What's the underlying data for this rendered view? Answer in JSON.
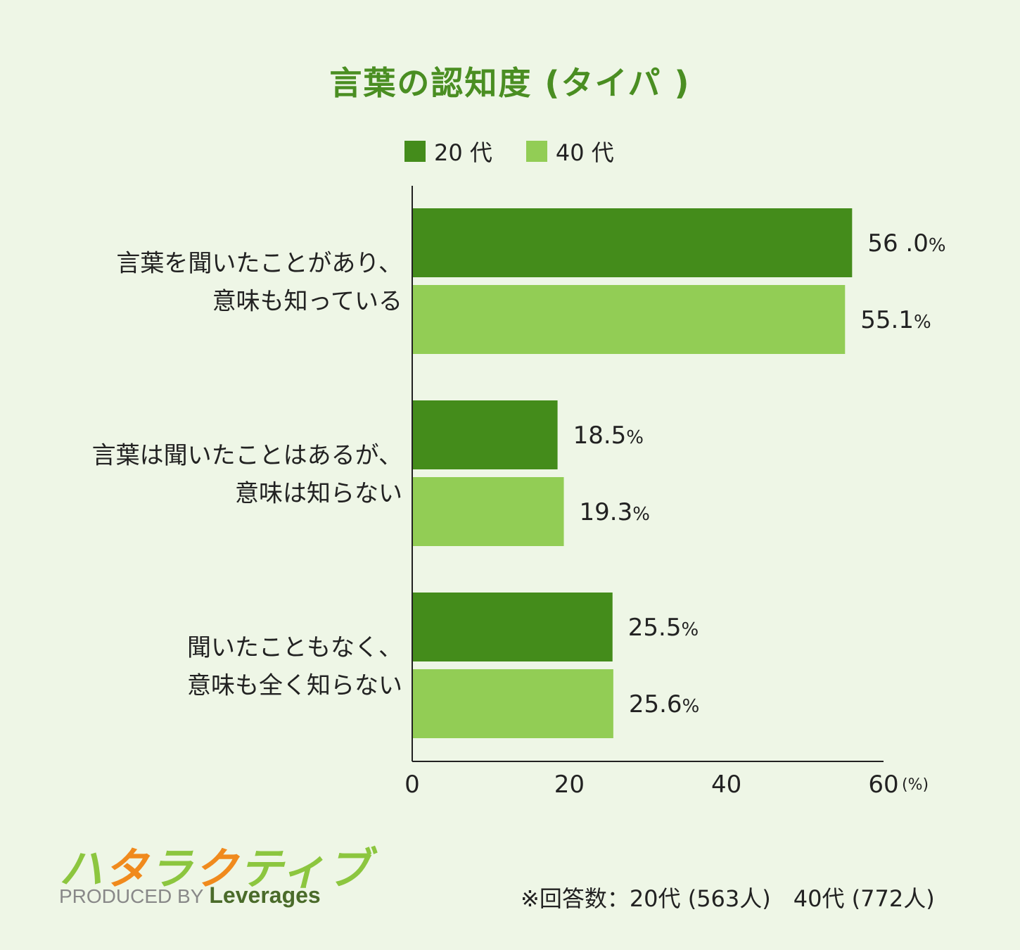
{
  "chart_data": {
    "type": "bar",
    "orientation": "horizontal",
    "title": "言葉の認知度 (タイパ )",
    "categories": [
      [
        "言葉を聞いたことがあり、",
        "意味も知っている"
      ],
      [
        "言葉は聞いたことはあるが、",
        "意味は知らない"
      ],
      [
        "聞いたこともなく、",
        "意味も全く知らない"
      ]
    ],
    "series": [
      {
        "name": "20 代",
        "color": "#448c1b",
        "values": [
          56.0,
          18.5,
          25.5
        ],
        "labels": [
          "56 .0",
          "18.5",
          "25.5"
        ]
      },
      {
        "name": "40 代",
        "color": "#92cd55",
        "values": [
          55.1,
          19.3,
          25.6
        ],
        "labels": [
          "55.1",
          "19.3",
          "25.6"
        ]
      }
    ],
    "value_suffix": "%",
    "xlim": [
      0,
      60
    ],
    "xticks": [
      "0",
      "20",
      "40",
      "60"
    ],
    "xunit": "(%)",
    "grid": false,
    "legend_position": "top"
  },
  "footnote": "※回答数：20代 (563人)　40代 (772人)",
  "logo": {
    "chars": [
      "ハ",
      "タ",
      "ラ",
      "ク",
      "テ",
      "ィ",
      "ブ"
    ],
    "produced_by": "PRODUCED BY",
    "brand": "Leverages"
  }
}
